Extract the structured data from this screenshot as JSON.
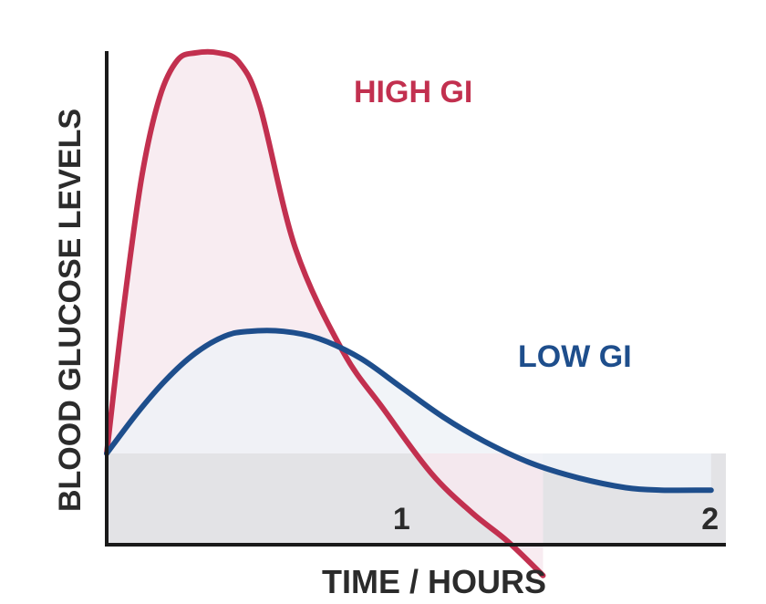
{
  "chart_data": {
    "type": "line",
    "title": "",
    "xlabel": "TIME / HOURS",
    "ylabel": "BLOOD GLUCOSE LEVELS",
    "xlim": [
      0,
      2.1
    ],
    "ylim": [
      0,
      10
    ],
    "x_ticks": [
      {
        "value": 1,
        "label": "1"
      },
      {
        "value": 2,
        "label": "2"
      }
    ],
    "baseline_band": [
      0,
      1.8
    ],
    "grid": false,
    "series": [
      {
        "name": "HIGH GI",
        "color": "#c2304f",
        "fill": "#f7e9ee",
        "points": [
          [
            0.0,
            1.8
          ],
          [
            0.06,
            4.9
          ],
          [
            0.12,
            7.5
          ],
          [
            0.18,
            9.1
          ],
          [
            0.24,
            9.85
          ],
          [
            0.3,
            10.0
          ],
          [
            0.38,
            10.0
          ],
          [
            0.45,
            9.8
          ],
          [
            0.52,
            8.9
          ],
          [
            0.64,
            6.0
          ],
          [
            0.8,
            3.9
          ],
          [
            0.94,
            2.7
          ],
          [
            1.1,
            1.4
          ],
          [
            1.24,
            0.58
          ],
          [
            1.36,
            0.0
          ],
          [
            1.48,
            -0.7
          ]
        ]
      },
      {
        "name": "LOW GI",
        "color": "#1e4e8c",
        "fill": "#eef2f7",
        "points": [
          [
            0.0,
            1.8
          ],
          [
            0.1,
            2.6
          ],
          [
            0.2,
            3.3
          ],
          [
            0.3,
            3.85
          ],
          [
            0.4,
            4.2
          ],
          [
            0.48,
            4.3
          ],
          [
            0.6,
            4.3
          ],
          [
            0.72,
            4.15
          ],
          [
            0.86,
            3.75
          ],
          [
            1.0,
            3.15
          ],
          [
            1.14,
            2.55
          ],
          [
            1.28,
            2.05
          ],
          [
            1.44,
            1.6
          ],
          [
            1.6,
            1.3
          ],
          [
            1.76,
            1.1
          ],
          [
            1.88,
            1.05
          ],
          [
            2.05,
            1.05
          ]
        ]
      }
    ]
  },
  "colors": {
    "axis": "#1a1a1a",
    "band": "#e3e3e6",
    "text": "#2b2b2b"
  }
}
